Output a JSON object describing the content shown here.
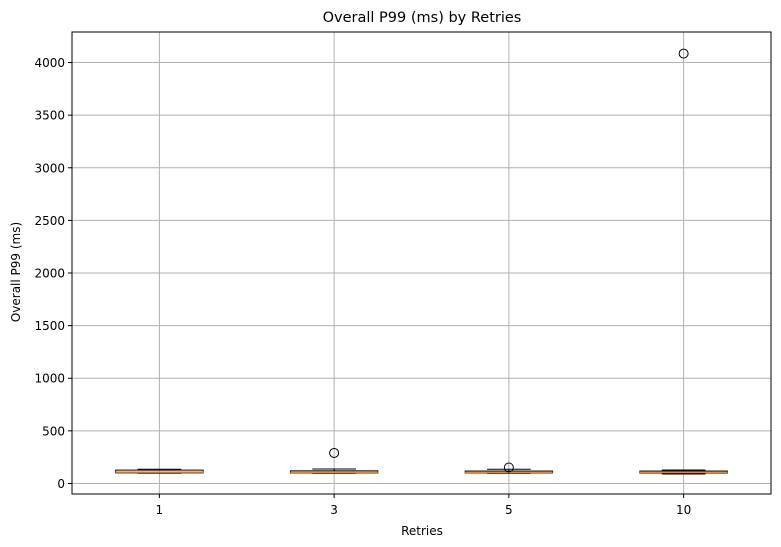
{
  "chart_data": {
    "type": "box",
    "title": "Overall P99 (ms) by Retries",
    "xlabel": "Retries",
    "ylabel": "Overall P99 (ms)",
    "categories": [
      "1",
      "3",
      "5",
      "10"
    ],
    "y_ticks": [
      0,
      500,
      1000,
      1500,
      2000,
      2500,
      3000,
      3500,
      4000
    ],
    "ylim": [
      -100,
      4290
    ],
    "grid": true,
    "boxes": [
      {
        "category": "1",
        "whisker_low": 98,
        "q1": 101,
        "median": 108,
        "q3": 127,
        "whisker_high": 135,
        "outliers": []
      },
      {
        "category": "3",
        "whisker_low": 97,
        "q1": 100,
        "median": 106,
        "q3": 120,
        "whisker_high": 138,
        "outliers": [
          290
        ]
      },
      {
        "category": "5",
        "whisker_low": 97,
        "q1": 100,
        "median": 106,
        "q3": 118,
        "whisker_high": 135,
        "outliers": [
          152
        ]
      },
      {
        "category": "10",
        "whisker_low": 90,
        "q1": 99,
        "median": 105,
        "q3": 118,
        "whisker_high": 128,
        "outliers": [
          4085
        ]
      }
    ],
    "colors": {
      "box": "#000000",
      "median": "#ff7f0e",
      "grid": "#b0b0b0",
      "flier": "#000000"
    }
  }
}
